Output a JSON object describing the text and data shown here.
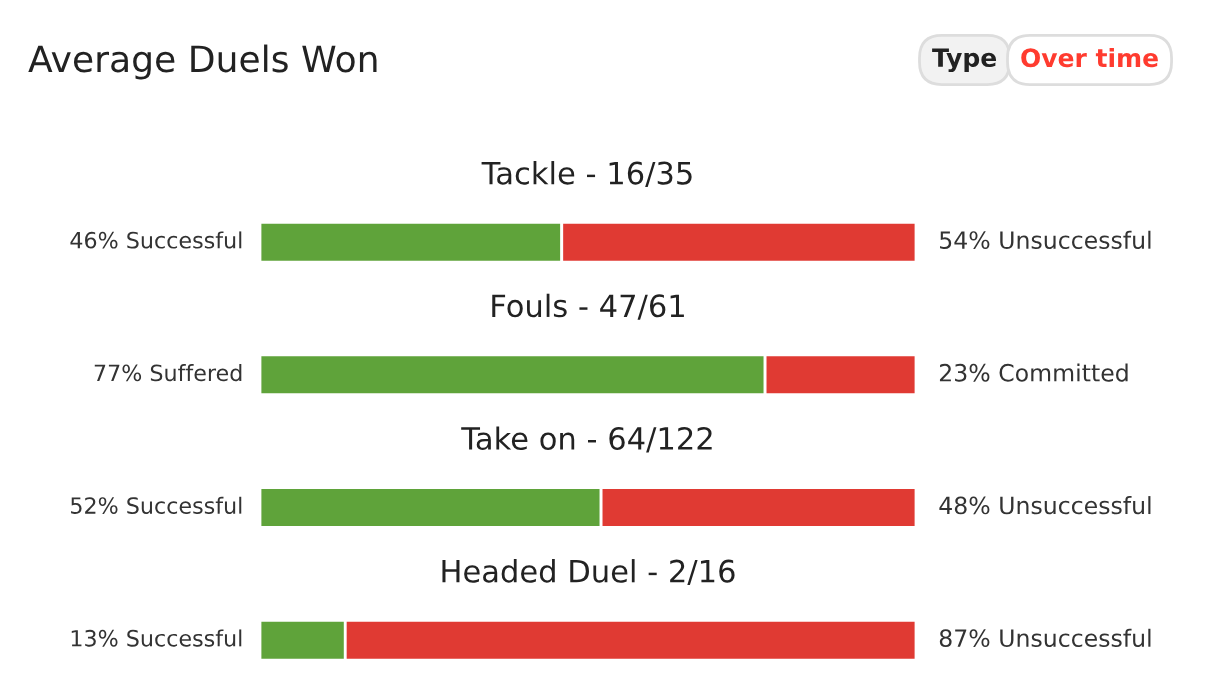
{
  "chart_data": {
    "type": "bar",
    "orientation": "horizontal",
    "stacked": true,
    "title": "Average Duels Won",
    "categories": [
      "Tackle - 16/35",
      "Fouls - 47/61",
      "Take on - 64/122",
      "Headed Duel - 2/16"
    ],
    "series": [
      {
        "color": "#5fa33a",
        "values": [
          46,
          77,
          52,
          13
        ],
        "value_labels": [
          "46% Successful",
          "77% Suffered",
          "52% Successful",
          "13% Successful"
        ]
      },
      {
        "color": "#e03a33",
        "values": [
          54,
          23,
          48,
          87
        ],
        "value_labels": [
          "54% Unsuccessful",
          "23% Committed",
          "48% Unsuccessful",
          "87% Unsuccessful"
        ]
      }
    ],
    "xlim": [
      0,
      100
    ],
    "tick_labels": false,
    "annotations": [
      "Type",
      "Over time"
    ]
  }
}
